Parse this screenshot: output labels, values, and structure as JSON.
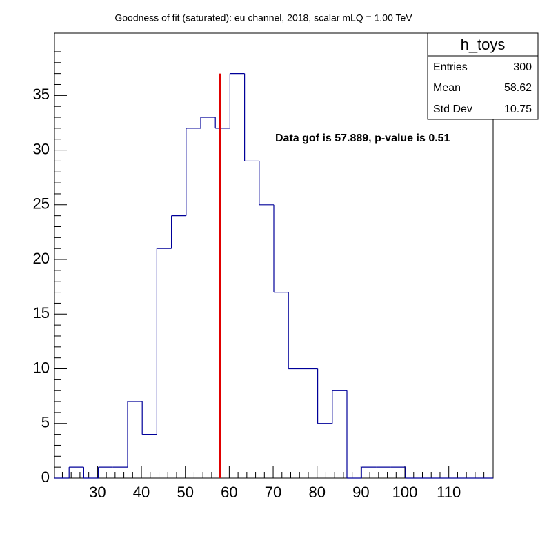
{
  "chart_data": {
    "type": "histogram",
    "title": "Goodness of fit (saturated): eu channel, 2018, scalar mLQ = 1.00 TeV",
    "bins": [
      20.2,
      23.53,
      26.86,
      30.19,
      33.52,
      36.85,
      40.18,
      43.51,
      46.84,
      50.17,
      53.5,
      56.83,
      60.16,
      63.49,
      66.82,
      70.15,
      73.48,
      76.81,
      80.14,
      83.47,
      86.8,
      90.13,
      93.46,
      96.79,
      100.12,
      103.45,
      106.78,
      110.11,
      113.44,
      116.77,
      120.1
    ],
    "counts": [
      0,
      1,
      0,
      1,
      1,
      7,
      4,
      21,
      24,
      32,
      33,
      32,
      37,
      29,
      25,
      17,
      10,
      10,
      5,
      8,
      0,
      1,
      1,
      1,
      0,
      0,
      0,
      0,
      0,
      0
    ],
    "color": "#000099",
    "xlim": [
      20.2,
      120.1
    ],
    "ylim": [
      0,
      40.7
    ],
    "xticks": [
      30,
      40,
      50,
      60,
      70,
      80,
      90,
      100,
      110
    ],
    "yticks": [
      0,
      5,
      10,
      15,
      20,
      25,
      30,
      35
    ],
    "reference_line": {
      "x": 57.889,
      "y": [
        0,
        37
      ],
      "color": "#e00000"
    },
    "annotation": "Data gof is 57.889, p-value is 0.51",
    "stats_box": {
      "title": "h_toys",
      "rows": [
        [
          "Entries",
          "300"
        ],
        [
          "Mean",
          "58.62"
        ],
        [
          "Std Dev",
          "10.75"
        ]
      ]
    }
  }
}
